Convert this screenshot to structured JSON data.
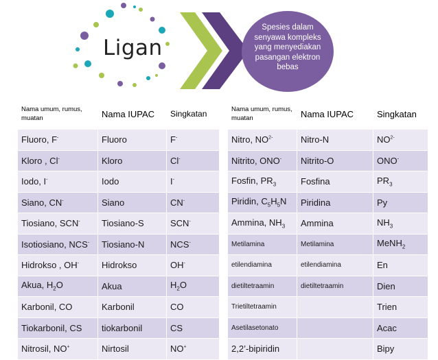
{
  "header": {
    "title": "Ligan",
    "definition": "Spesies dalam senyawa kompleks yang menyediakan pasangan elektron bebas",
    "colors": {
      "circle": "#7b5ea0",
      "chevron_dark": "#5b3f80",
      "chevron_light": "#a9c44f",
      "row_dark": "#d7d2e8",
      "row_light": "#ebe8f3"
    }
  },
  "left_table": {
    "headers": [
      "Nama umum, rumus, muatan",
      "Nama IUPAC",
      "Singkatan"
    ],
    "rows": [
      {
        "common": "Fluoro, F",
        "common_sup": "-",
        "iupac": "Fluoro",
        "abbr": "F",
        "abbr_sup": "-"
      },
      {
        "common": "Kloro , Cl",
        "common_sup": "-",
        "iupac": "Kloro",
        "abbr": "Cl",
        "abbr_sup": "-"
      },
      {
        "common": "Iodo, I",
        "common_sup": "-",
        "iupac": "Iodo",
        "abbr": "I",
        "abbr_sup": "-"
      },
      {
        "common": "Siano, CN",
        "common_sup": "-",
        "iupac": "Siano",
        "abbr": "CN",
        "abbr_sup": "-"
      },
      {
        "common": "Tiosiano, SCN",
        "common_sup": "-",
        "iupac": "Tiosiano-S",
        "abbr": "SCN",
        "abbr_sup": "-"
      },
      {
        "common": "Isotiosiano, NCS",
        "common_sup": "-",
        "iupac": "Tiosiano-N",
        "abbr": "NCS",
        "abbr_sup": "-"
      },
      {
        "common": "Hidrokso , OH",
        "common_sup": "-",
        "iupac": "Hidrokso",
        "abbr": "OH",
        "abbr_sup": "-"
      },
      {
        "common": "Akua, H",
        "common_sub": "2",
        "common_tail": "O",
        "iupac": "Akua",
        "abbr": "H",
        "abbr_sub": "2",
        "abbr_tail": "O"
      },
      {
        "common": "Karbonil, CO",
        "iupac": "Karbonil",
        "abbr": "CO"
      },
      {
        "common": "Tiokarbonil, CS",
        "iupac": "tiokarbonil",
        "abbr": "CS"
      },
      {
        "common": "Nitrosil, NO",
        "common_sup": "+",
        "iupac": "Nirtosil",
        "abbr": "NO",
        "abbr_sup": "+"
      }
    ]
  },
  "right_table": {
    "headers": [
      "Nama umum, rumus, muatan",
      "Nama IUPAC",
      "Singkatan"
    ],
    "rows": [
      {
        "common": "Nitro, NO",
        "common_sup": "2-",
        "iupac": "Nitro-N",
        "abbr": "NO",
        "abbr_sup": "2-"
      },
      {
        "common": "Nitrito, ONO",
        "common_sup": "-",
        "iupac": "Nitrito-O",
        "abbr": "ONO",
        "abbr_sup": "-"
      },
      {
        "common": "Fosfin, PR",
        "common_sub": "3",
        "iupac": "Fosfina",
        "abbr": "PR",
        "abbr_sub": "3"
      },
      {
        "common": "Piridin, C",
        "common_sub": "5",
        "common_tail": "H",
        "common_sub2": "5",
        "common_tail2": "N",
        "iupac": "Piridina",
        "abbr": "Py"
      },
      {
        "common": "Ammina, NH",
        "common_sub": "3",
        "iupac": "Ammina",
        "abbr": "NH",
        "abbr_sub": "3"
      },
      {
        "common": "Metilamina",
        "small": true,
        "iupac": "Metilamina",
        "abbr": "MeNH",
        "abbr_sub": "2"
      },
      {
        "common": "etilendiamina",
        "small": true,
        "iupac": "etilendiamina",
        "abbr": "En"
      },
      {
        "common": "dietiltetraamin",
        "small": true,
        "iupac": "dietiltetraamin",
        "abbr": "Dien"
      },
      {
        "common": "Trietiltetraamin",
        "small": true,
        "iupac": "",
        "abbr": "Trien"
      },
      {
        "common": "Asetilasetonato",
        "small": true,
        "iupac": "",
        "abbr": "Acac"
      },
      {
        "common": "2,2’-bipiridin",
        "iupac": "",
        "abbr": "Bipy"
      }
    ]
  }
}
